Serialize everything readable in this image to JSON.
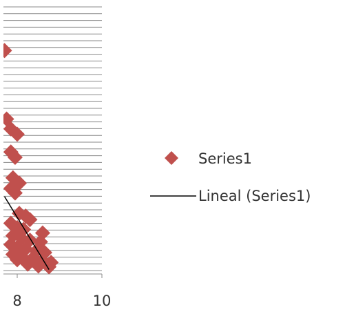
{
  "chart_data": {
    "type": "scatter",
    "x_ticks": [
      "8",
      "10"
    ],
    "xlim": [
      7.7,
      10
    ],
    "ylim": [
      0,
      30
    ],
    "grid": "horizontal",
    "legend_position": "right",
    "colors": {
      "marker": "#c0504d",
      "trend": "#000000",
      "grid": "#888888"
    },
    "series": [
      {
        "name": "Series1",
        "marker": "diamond",
        "points": [
          {
            "x": 7.7,
            "y": 25.1
          },
          {
            "x": 7.75,
            "y": 17.4
          },
          {
            "x": 7.85,
            "y": 16.3
          },
          {
            "x": 8.0,
            "y": 15.7
          },
          {
            "x": 7.85,
            "y": 13.7
          },
          {
            "x": 7.95,
            "y": 13.1
          },
          {
            "x": 7.9,
            "y": 10.8
          },
          {
            "x": 8.05,
            "y": 10.2
          },
          {
            "x": 7.85,
            "y": 9.6
          },
          {
            "x": 7.95,
            "y": 9.1
          },
          {
            "x": 8.05,
            "y": 6.8
          },
          {
            "x": 8.2,
            "y": 6.5
          },
          {
            "x": 8.3,
            "y": 6.1
          },
          {
            "x": 7.85,
            "y": 5.7
          },
          {
            "x": 8.0,
            "y": 5.2
          },
          {
            "x": 8.15,
            "y": 5.0
          },
          {
            "x": 8.6,
            "y": 4.6
          },
          {
            "x": 7.9,
            "y": 4.3
          },
          {
            "x": 8.1,
            "y": 4.0
          },
          {
            "x": 8.3,
            "y": 3.8
          },
          {
            "x": 8.55,
            "y": 3.6
          },
          {
            "x": 7.85,
            "y": 3.3
          },
          {
            "x": 8.0,
            "y": 3.0
          },
          {
            "x": 8.2,
            "y": 2.8
          },
          {
            "x": 8.45,
            "y": 2.6
          },
          {
            "x": 8.65,
            "y": 2.4
          },
          {
            "x": 7.9,
            "y": 2.2
          },
          {
            "x": 8.1,
            "y": 2.0
          },
          {
            "x": 8.35,
            "y": 1.7
          },
          {
            "x": 8.6,
            "y": 1.5
          },
          {
            "x": 8.8,
            "y": 1.3
          },
          {
            "x": 8.25,
            "y": 1.1
          },
          {
            "x": 8.5,
            "y": 0.9
          },
          {
            "x": 8.75,
            "y": 0.8
          },
          {
            "x": 8.4,
            "y": 1.8
          },
          {
            "x": 8.0,
            "y": 1.6
          }
        ]
      },
      {
        "name": "Lineal (Series1)",
        "type": "linear-trendline",
        "line": [
          {
            "x": 7.7,
            "y": 8.7
          },
          {
            "x": 8.75,
            "y": 0.5
          }
        ]
      }
    ]
  },
  "legend": {
    "items": [
      {
        "label": "Series1",
        "symbol": "diamond"
      },
      {
        "label": "Lineal (Series1)",
        "symbol": "line"
      }
    ]
  }
}
